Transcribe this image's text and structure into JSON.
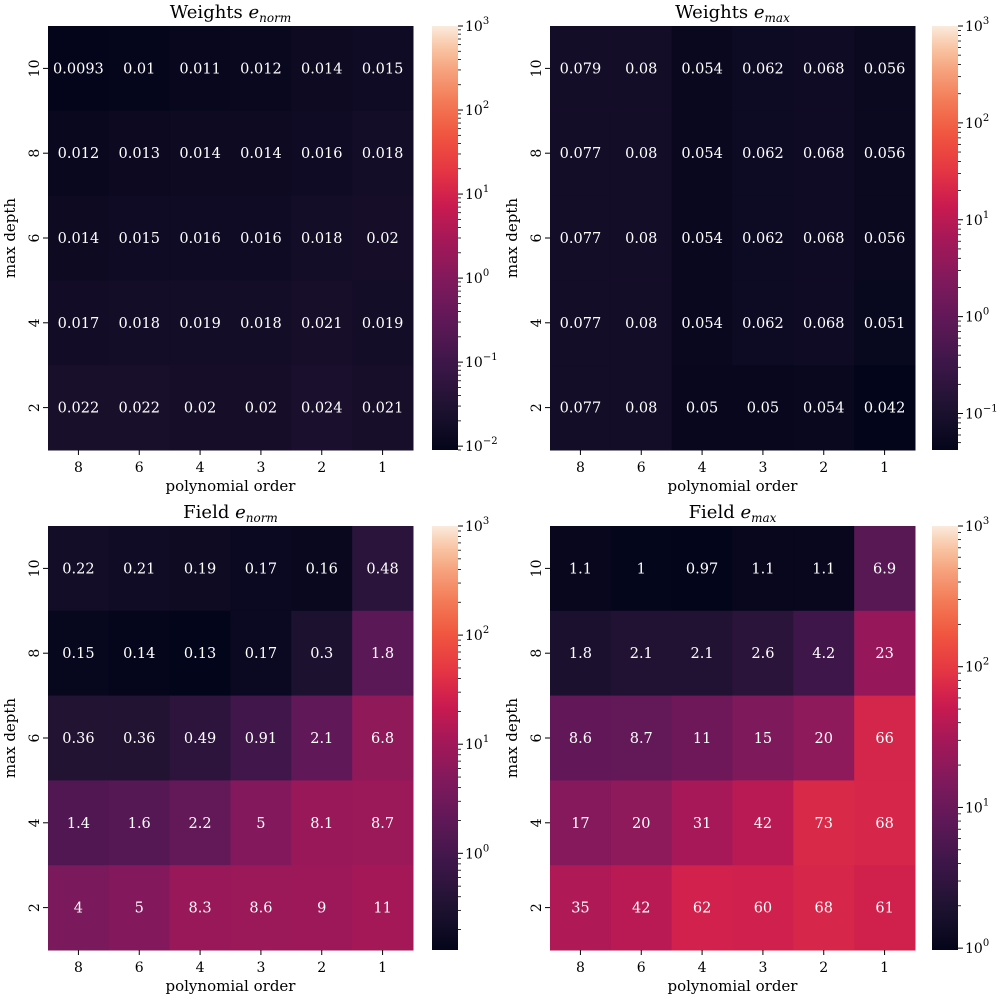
{
  "chart_data": [
    {
      "type": "heatmap",
      "title": "Weights",
      "title_subscript": "norm",
      "xlabel": "polynomial order",
      "ylabel": "max depth",
      "x_categories": [
        "8",
        "6",
        "4",
        "3",
        "2",
        "1"
      ],
      "y_categories": [
        "10",
        "8",
        "6",
        "4",
        "2"
      ],
      "values": [
        [
          0.0093,
          0.01,
          0.011,
          0.012,
          0.014,
          0.015
        ],
        [
          0.012,
          0.013,
          0.014,
          0.014,
          0.016,
          0.018
        ],
        [
          0.014,
          0.015,
          0.016,
          0.016,
          0.018,
          0.02
        ],
        [
          0.017,
          0.018,
          0.019,
          0.018,
          0.021,
          0.019
        ],
        [
          0.022,
          0.022,
          0.02,
          0.02,
          0.024,
          0.021
        ]
      ],
      "cell_labels": [
        [
          "0.0093",
          "0.01",
          "0.011",
          "0.012",
          "0.014",
          "0.015"
        ],
        [
          "0.012",
          "0.013",
          "0.014",
          "0.014",
          "0.016",
          "0.018"
        ],
        [
          "0.014",
          "0.015",
          "0.016",
          "0.016",
          "0.018",
          "0.02"
        ],
        [
          "0.017",
          "0.018",
          "0.019",
          "0.018",
          "0.021",
          "0.019"
        ],
        [
          "0.022",
          "0.022",
          "0.02",
          "0.02",
          "0.024",
          "0.021"
        ]
      ],
      "color_scale": "log",
      "colormap": "rocket",
      "vmin": 0.009,
      "vmax": 1000,
      "colorbar_ticks": [
        {
          "base": "10",
          "exp": "−2",
          "value": 0.01
        },
        {
          "base": "10",
          "exp": "−1",
          "value": 0.1
        },
        {
          "base": "10",
          "exp": "0",
          "value": 1
        },
        {
          "base": "10",
          "exp": "1",
          "value": 10
        },
        {
          "base": "10",
          "exp": "2",
          "value": 100
        },
        {
          "base": "10",
          "exp": "3",
          "value": 1000
        }
      ]
    },
    {
      "type": "heatmap",
      "title": "Weights",
      "title_subscript": "max",
      "xlabel": "polynomial order",
      "ylabel": "max depth",
      "x_categories": [
        "8",
        "6",
        "4",
        "3",
        "2",
        "1"
      ],
      "y_categories": [
        "10",
        "8",
        "6",
        "4",
        "2"
      ],
      "values": [
        [
          0.079,
          0.08,
          0.054,
          0.062,
          0.068,
          0.056
        ],
        [
          0.077,
          0.08,
          0.054,
          0.062,
          0.068,
          0.056
        ],
        [
          0.077,
          0.08,
          0.054,
          0.062,
          0.068,
          0.056
        ],
        [
          0.077,
          0.08,
          0.054,
          0.062,
          0.068,
          0.051
        ],
        [
          0.077,
          0.08,
          0.05,
          0.05,
          0.054,
          0.042
        ]
      ],
      "cell_labels": [
        [
          "0.079",
          "0.08",
          "0.054",
          "0.062",
          "0.068",
          "0.056"
        ],
        [
          "0.077",
          "0.08",
          "0.054",
          "0.062",
          "0.068",
          "0.056"
        ],
        [
          "0.077",
          "0.08",
          "0.054",
          "0.062",
          "0.068",
          "0.056"
        ],
        [
          "0.077",
          "0.08",
          "0.054",
          "0.062",
          "0.068",
          "0.051"
        ],
        [
          "0.077",
          "0.08",
          "0.05",
          "0.05",
          "0.054",
          "0.042"
        ]
      ],
      "color_scale": "log",
      "colormap": "rocket",
      "vmin": 0.042,
      "vmax": 1000,
      "colorbar_ticks": [
        {
          "base": "10",
          "exp": "−1",
          "value": 0.1
        },
        {
          "base": "10",
          "exp": "0",
          "value": 1
        },
        {
          "base": "10",
          "exp": "1",
          "value": 10
        },
        {
          "base": "10",
          "exp": "2",
          "value": 100
        },
        {
          "base": "10",
          "exp": "3",
          "value": 1000
        }
      ]
    },
    {
      "type": "heatmap",
      "title": "Field",
      "title_subscript": "norm",
      "xlabel": "polynomial order",
      "ylabel": "max depth",
      "x_categories": [
        "8",
        "6",
        "4",
        "3",
        "2",
        "1"
      ],
      "y_categories": [
        "10",
        "8",
        "6",
        "4",
        "2"
      ],
      "values": [
        [
          0.22,
          0.21,
          0.19,
          0.17,
          0.16,
          0.48
        ],
        [
          0.15,
          0.14,
          0.13,
          0.17,
          0.3,
          1.8
        ],
        [
          0.36,
          0.36,
          0.49,
          0.91,
          2.1,
          6.8
        ],
        [
          1.4,
          1.6,
          2.2,
          5,
          8.1,
          8.7
        ],
        [
          4,
          5,
          8.3,
          8.6,
          9,
          11
        ]
      ],
      "cell_labels": [
        [
          "0.22",
          "0.21",
          "0.19",
          "0.17",
          "0.16",
          "0.48"
        ],
        [
          "0.15",
          "0.14",
          "0.13",
          "0.17",
          "0.3",
          "1.8"
        ],
        [
          "0.36",
          "0.36",
          "0.49",
          "0.91",
          "2.1",
          "6.8"
        ],
        [
          "1.4",
          "1.6",
          "2.2",
          "5",
          "8.1",
          "8.7"
        ],
        [
          "4",
          "5",
          "8.3",
          "8.6",
          "9",
          "11"
        ]
      ],
      "color_scale": "log",
      "colormap": "rocket",
      "vmin": 0.13,
      "vmax": 1000,
      "colorbar_ticks": [
        {
          "base": "10",
          "exp": "0",
          "value": 1
        },
        {
          "base": "10",
          "exp": "1",
          "value": 10
        },
        {
          "base": "10",
          "exp": "2",
          "value": 100
        },
        {
          "base": "10",
          "exp": "3",
          "value": 1000
        }
      ]
    },
    {
      "type": "heatmap",
      "title": "Field",
      "title_subscript": "max",
      "xlabel": "polynomial order",
      "ylabel": "max depth",
      "x_categories": [
        "8",
        "6",
        "4",
        "3",
        "2",
        "1"
      ],
      "y_categories": [
        "10",
        "8",
        "6",
        "4",
        "2"
      ],
      "values": [
        [
          1.1,
          1,
          0.97,
          1.1,
          1.1,
          6.9
        ],
        [
          1.8,
          2.1,
          2.1,
          2.6,
          4.2,
          23
        ],
        [
          8.6,
          8.7,
          11,
          15,
          20,
          66
        ],
        [
          17,
          20,
          31,
          42,
          73,
          68
        ],
        [
          35,
          42,
          62,
          60,
          68,
          61
        ]
      ],
      "cell_labels": [
        [
          "1.1",
          "1",
          "0.97",
          "1.1",
          "1.1",
          "6.9"
        ],
        [
          "1.8",
          "2.1",
          "2.1",
          "2.6",
          "4.2",
          "23"
        ],
        [
          "8.6",
          "8.7",
          "11",
          "15",
          "20",
          "66"
        ],
        [
          "17",
          "20",
          "31",
          "42",
          "73",
          "68"
        ],
        [
          "35",
          "42",
          "62",
          "60",
          "68",
          "61"
        ]
      ],
      "color_scale": "log",
      "colormap": "rocket",
      "vmin": 0.97,
      "vmax": 1000,
      "colorbar_ticks": [
        {
          "base": "10",
          "exp": "0",
          "value": 1
        },
        {
          "base": "10",
          "exp": "1",
          "value": 10
        },
        {
          "base": "10",
          "exp": "2",
          "value": 100
        },
        {
          "base": "10",
          "exp": "3",
          "value": 1000
        }
      ]
    }
  ]
}
